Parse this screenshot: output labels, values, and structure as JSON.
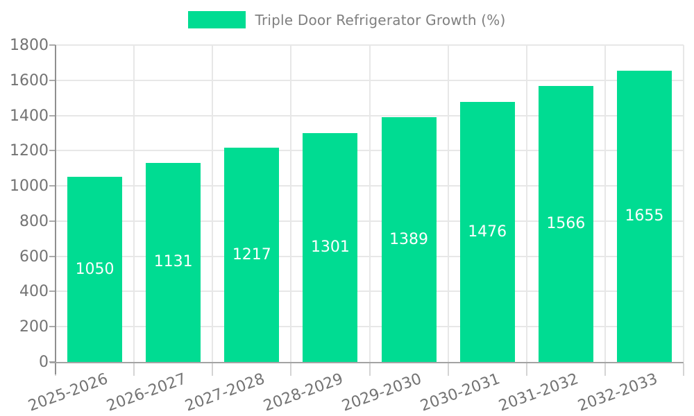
{
  "legend": {
    "label": "Triple Door Refrigerator Growth (%)",
    "swatch_color": "#00dc92"
  },
  "chart_data": {
    "type": "bar",
    "title": "Triple Door Refrigerator Growth (%)",
    "categories": [
      "2025-2026",
      "2026-2027",
      "2027-2028",
      "2028-2029",
      "2029-2030",
      "2030-2031",
      "2031-2032",
      "2032-2033"
    ],
    "values": [
      1050,
      1131,
      1217,
      1301,
      1389,
      1476,
      1566,
      1655
    ],
    "value_labels": [
      "1050",
      "1131",
      "1217",
      "1301",
      "1389",
      "1476",
      "1566",
      "1655"
    ],
    "xlabel": "",
    "ylabel": "",
    "ylim": [
      0,
      1800
    ],
    "ytick_step": 200,
    "ytick_labels": [
      "0",
      "200",
      "400",
      "600",
      "800",
      "1000",
      "1200",
      "1400",
      "1600",
      "1800"
    ],
    "grid": "on",
    "legend_position": "top-center",
    "bar_color": "#00dc92",
    "value_label_color": "#ffffff",
    "tick_label_color": "#737373",
    "gridline_color": "#e7e7e7",
    "x_label_rotation_deg": -20
  }
}
